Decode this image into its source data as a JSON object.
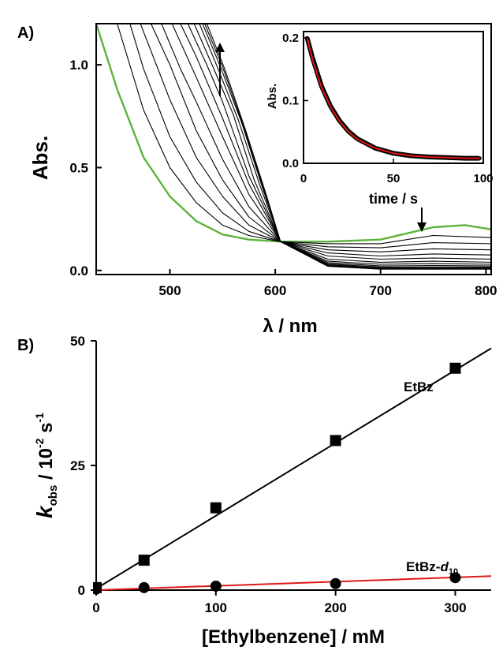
{
  "figure": {
    "panel_a_label": "A",
    "panel_b_label": "B"
  },
  "chart_data": [
    {
      "panel": "A",
      "type": "line",
      "xlabel": "λ / nm",
      "ylabel": "Abs.",
      "xlim": [
        430,
        805
      ],
      "ylim": [
        -0.02,
        1.2
      ],
      "x_ticks": [
        500,
        600,
        700,
        800
      ],
      "y_ticks": [
        0.0,
        0.5,
        1.0
      ],
      "x_tick_labels": [
        "500",
        "600",
        "700",
        "800"
      ],
      "y_tick_labels": [
        "0.0",
        "0.5",
        "1.0"
      ],
      "arrows": [
        "up at ~540 nm (absorbance increases over time)",
        "down at ~740 nm (absorbance decreases over time)"
      ],
      "colors": {
        "initial_spectrum": "#5cb33a",
        "subsequent_spectra": "#000000"
      },
      "isosbestic_point_nm": 605,
      "series": [
        {
          "x": [
            430,
            450,
            475,
            500,
            525,
            550,
            575,
            605,
            650,
            700,
            750,
            780,
            805
          ],
          "y": [
            1.2,
            0.88,
            0.55,
            0.36,
            0.24,
            0.175,
            0.15,
            0.14,
            0.14,
            0.15,
            0.21,
            0.22,
            0.2
          ]
        },
        {
          "x": [
            450,
            475,
            500,
            525,
            550,
            575,
            605,
            650,
            700,
            750,
            805
          ],
          "y": [
            1.2,
            0.78,
            0.5,
            0.33,
            0.22,
            0.17,
            0.14,
            0.13,
            0.13,
            0.17,
            0.16
          ]
        },
        {
          "x": [
            462,
            475,
            500,
            525,
            550,
            575,
            605,
            650,
            700,
            750,
            805
          ],
          "y": [
            1.2,
            0.98,
            0.65,
            0.43,
            0.28,
            0.19,
            0.14,
            0.115,
            0.11,
            0.135,
            0.13
          ]
        },
        {
          "x": [
            472,
            500,
            525,
            550,
            575,
            605,
            650,
            700,
            750,
            805
          ],
          "y": [
            1.2,
            0.83,
            0.55,
            0.36,
            0.22,
            0.14,
            0.1,
            0.09,
            0.105,
            0.1
          ]
        },
        {
          "x": [
            482,
            500,
            525,
            550,
            575,
            605,
            650,
            700,
            750,
            805
          ],
          "y": [
            1.2,
            1.0,
            0.68,
            0.44,
            0.26,
            0.14,
            0.085,
            0.07,
            0.08,
            0.075
          ]
        },
        {
          "x": [
            492,
            510,
            525,
            550,
            575,
            605,
            650,
            700,
            750,
            805
          ],
          "y": [
            1.2,
            0.98,
            0.82,
            0.54,
            0.31,
            0.14,
            0.07,
            0.055,
            0.06,
            0.055
          ]
        },
        {
          "x": [
            502,
            525,
            550,
            575,
            605,
            650,
            700,
            750,
            805
          ],
          "y": [
            1.2,
            0.94,
            0.65,
            0.37,
            0.14,
            0.055,
            0.04,
            0.045,
            0.04
          ]
        },
        {
          "x": [
            510,
            525,
            550,
            575,
            605,
            650,
            700,
            750,
            805
          ],
          "y": [
            1.2,
            1.04,
            0.74,
            0.42,
            0.14,
            0.045,
            0.03,
            0.033,
            0.03
          ]
        },
        {
          "x": [
            517,
            535,
            550,
            575,
            605,
            650,
            700,
            750,
            805
          ],
          "y": [
            1.2,
            1.0,
            0.82,
            0.46,
            0.14,
            0.038,
            0.022,
            0.024,
            0.022
          ]
        },
        {
          "x": [
            523,
            540,
            560,
            580,
            605,
            650,
            700,
            750,
            805
          ],
          "y": [
            1.2,
            1.0,
            0.76,
            0.44,
            0.14,
            0.032,
            0.016,
            0.017,
            0.016
          ]
        },
        {
          "x": [
            528,
            545,
            565,
            585,
            605,
            650,
            700,
            750,
            805
          ],
          "y": [
            1.2,
            0.99,
            0.73,
            0.42,
            0.14,
            0.028,
            0.012,
            0.012,
            0.012
          ]
        },
        {
          "x": [
            531,
            548,
            568,
            588,
            605,
            650,
            700,
            750,
            805
          ],
          "y": [
            1.2,
            0.99,
            0.72,
            0.4,
            0.14,
            0.025,
            0.009,
            0.009,
            0.009
          ]
        },
        {
          "x": [
            533,
            550,
            570,
            590,
            605,
            650,
            700,
            750,
            805
          ],
          "y": [
            1.2,
            0.99,
            0.7,
            0.38,
            0.14,
            0.022,
            0.007,
            0.007,
            0.007
          ]
        },
        {
          "x": [
            535,
            552,
            572,
            592,
            605,
            650,
            700,
            750,
            805
          ],
          "y": [
            1.2,
            0.98,
            0.68,
            0.36,
            0.14,
            0.02,
            0.006,
            0.006,
            0.006
          ]
        }
      ]
    },
    {
      "panel": "A-inset",
      "type": "scatter",
      "xlabel": "time / s",
      "ylabel": "Abs.",
      "xlim": [
        0,
        100
      ],
      "ylim": [
        0,
        0.21
      ],
      "x_ticks": [
        0,
        50,
        100
      ],
      "y_ticks": [
        0.0,
        0.1,
        0.2
      ],
      "x_tick_labels": [
        "0",
        "50",
        "100"
      ],
      "y_tick_labels": [
        "0.0",
        "0.1",
        "0.2"
      ],
      "colors": {
        "data": "#000000",
        "fit": "#e01818"
      },
      "series": [
        {
          "role": "data",
          "x": [
            2,
            5,
            10,
            15,
            20,
            25,
            30,
            40,
            50,
            60,
            70,
            80,
            90,
            98
          ],
          "y": [
            0.2,
            0.168,
            0.123,
            0.091,
            0.068,
            0.051,
            0.039,
            0.024,
            0.016,
            0.012,
            0.01,
            0.009,
            0.008,
            0.008
          ]
        },
        {
          "role": "fit",
          "x": [
            2,
            5,
            10,
            15,
            20,
            25,
            30,
            40,
            50,
            60,
            70,
            80,
            90,
            98
          ],
          "y": [
            0.2,
            0.165,
            0.121,
            0.09,
            0.067,
            0.05,
            0.038,
            0.024,
            0.016,
            0.012,
            0.01,
            0.009,
            0.008,
            0.008
          ]
        }
      ]
    },
    {
      "panel": "B",
      "type": "scatter",
      "xlabel": "[Ethylbenzene] / mM",
      "ylabel_main": "k",
      "ylabel_sub": "obs",
      "ylabel_rest": " / 10",
      "ylabel_exp1": "-2",
      "ylabel_unit": " s",
      "ylabel_exp2": "-1",
      "xlim": [
        0,
        330
      ],
      "ylim": [
        0,
        50
      ],
      "x_ticks": [
        0,
        100,
        200,
        300
      ],
      "y_ticks": [
        0,
        25,
        50
      ],
      "x_tick_labels": [
        "0",
        "100",
        "200",
        "300"
      ],
      "y_tick_labels": [
        "0",
        "25",
        "50"
      ],
      "series": [
        {
          "name": "EtBz",
          "marker": "square",
          "color": "#000000",
          "fit_color": "#000000",
          "x": [
            0,
            40,
            100,
            200,
            300
          ],
          "y": [
            0.5,
            6.0,
            16.5,
            30.0,
            44.5
          ],
          "fit_y_at_xmin": 0.3,
          "fit_y_at_xmax": 48.5
        },
        {
          "name_main": "EtBz-",
          "name_italic": "d",
          "name_sub": "10",
          "marker": "circle",
          "color": "#000000",
          "fit_color": "#e01818",
          "x": [
            0,
            40,
            100,
            200,
            300
          ],
          "y": [
            0.2,
            0.5,
            0.8,
            1.3,
            2.5
          ],
          "fit_y_at_xmin": 0.0,
          "fit_y_at_xmax": 2.8
        }
      ]
    }
  ]
}
